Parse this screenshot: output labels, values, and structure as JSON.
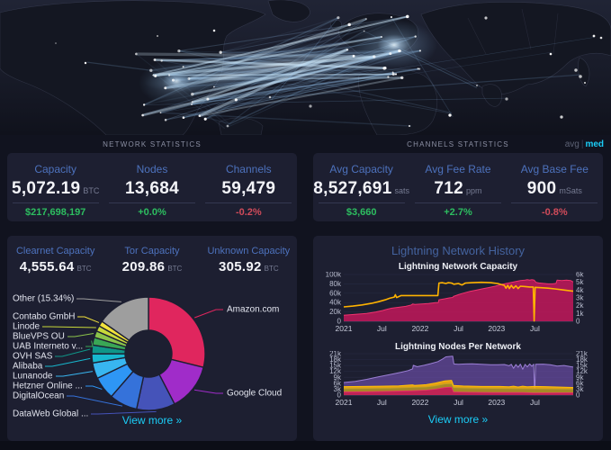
{
  "colors": {
    "accent_blue": "#4d72bd",
    "positive_green": "#2dbe60",
    "negative_red": "#d04b5a",
    "link_cyan": "#1bcdf7",
    "chart_yellow": "#ffb300",
    "chart_crimson": "#c2185b",
    "chart_purple": "#8e6bc9",
    "panel_bg": "#1d1f31",
    "page_bg": "#11131f"
  },
  "network_stats": {
    "header": "NETWORK STATISTICS",
    "items": [
      {
        "label": "Capacity",
        "value": "5,072.19",
        "unit": "BTC",
        "sub": "$217,698,197",
        "sub_color": "green"
      },
      {
        "label": "Nodes",
        "value": "13,684",
        "unit": "",
        "sub": "+0.0%",
        "sub_color": "green"
      },
      {
        "label": "Channels",
        "value": "59,479",
        "unit": "",
        "sub": "-0.2%",
        "sub_color": "red"
      }
    ]
  },
  "channel_stats": {
    "header": "CHANNELS STATISTICS",
    "toggle": {
      "avg": "avg",
      "separator": "|",
      "med": "med",
      "active": "med"
    },
    "items": [
      {
        "label": "Avg Capacity",
        "value": "8,527,691",
        "unit": "sats",
        "sub": "$3,660",
        "sub_color": "green"
      },
      {
        "label": "Avg Fee Rate",
        "value": "712",
        "unit": "ppm",
        "sub": "+2.7%",
        "sub_color": "green"
      },
      {
        "label": "Avg Base Fee",
        "value": "900",
        "unit": "mSats",
        "sub": "-0.8%",
        "sub_color": "red"
      }
    ]
  },
  "capacity_panel": {
    "stats": [
      {
        "label": "Clearnet Capacity",
        "value": "4,555.64",
        "unit": "BTC"
      },
      {
        "label": "Tor Capacity",
        "value": "209.86",
        "unit": "BTC"
      },
      {
        "label": "Unknown Capacity",
        "value": "305.92",
        "unit": "BTC"
      }
    ],
    "view_more": "View more »"
  },
  "history_panel": {
    "title": "Lightning Network History",
    "view_more": "View more »"
  },
  "chart_data": [
    {
      "type": "pie",
      "donut": true,
      "slices": [
        {
          "label": "Amazon.com",
          "value": 28.9,
          "color": "#e0265e"
        },
        {
          "label": "Google Cloud",
          "value": 13.5,
          "color": "#a02cc9"
        },
        {
          "label": "DataWeb Global ...",
          "value": 11.0,
          "color": "#4553b9"
        },
        {
          "label": "DigitalOcean",
          "value": 8.0,
          "color": "#3572da"
        },
        {
          "label": "Hetzner Online ...",
          "value": 6.5,
          "color": "#2e96f5"
        },
        {
          "label": "Lunanode",
          "value": 4.5,
          "color": "#38b6f0"
        },
        {
          "label": "Alibaba",
          "value": 2.6,
          "color": "#17b8cf"
        },
        {
          "label": "OVH SAS",
          "value": 2.5,
          "color": "#0f9688"
        },
        {
          "label": "UAB Interneto v...",
          "value": 2.2,
          "color": "#3aa655"
        },
        {
          "label": "BlueVPS OU",
          "value": 1.9,
          "color": "#8bc34a"
        },
        {
          "label": "Linode",
          "value": 1.6,
          "color": "#c9d93a"
        },
        {
          "label": "Contabo GmbH",
          "value": 1.5,
          "color": "#f2e23c"
        },
        {
          "label": "Other (15.34%)",
          "value": 15.34,
          "color": "#9e9e9e"
        }
      ]
    },
    {
      "type": "area",
      "title": "Lightning Network Capacity",
      "x_ticks": [
        {
          "label": "2021",
          "f": 0.0
        },
        {
          "label": "Jul",
          "f": 0.166
        },
        {
          "label": "2022",
          "f": 0.333
        },
        {
          "label": "Jul",
          "f": 0.5
        },
        {
          "label": "2023",
          "f": 0.666
        },
        {
          "label": "Jul",
          "f": 0.833
        }
      ],
      "left_axis": {
        "max": 100,
        "ticks": [
          "0",
          "20k",
          "40k",
          "60k",
          "80k",
          "100k"
        ]
      },
      "right_axis": {
        "max": 6,
        "ticks": [
          "0",
          "1k",
          "2k",
          "3k",
          "4k",
          "5k",
          "6k"
        ]
      },
      "series": [
        {
          "name": "crimson-area",
          "axis": "left",
          "fill": "rgba(194,24,91,0.85)",
          "stroke": "#f0326e",
          "width": 1,
          "points": [
            [
              0,
              13
            ],
            [
              0.05,
              15
            ],
            [
              0.1,
              17
            ],
            [
              0.14,
              20
            ],
            [
              0.17,
              23
            ],
            [
              0.19,
              26
            ],
            [
              0.21,
              28
            ],
            [
              0.24,
              30
            ],
            [
              0.27,
              32
            ],
            [
              0.295,
              35
            ],
            [
              0.3,
              37
            ],
            [
              0.31,
              36
            ],
            [
              0.34,
              37
            ],
            [
              0.37,
              38
            ],
            [
              0.4,
              40
            ],
            [
              0.412,
              40
            ],
            [
              0.415,
              46
            ],
            [
              0.44,
              48
            ],
            [
              0.46,
              50
            ],
            [
              0.475,
              51
            ],
            [
              0.478,
              53
            ],
            [
              0.5,
              57
            ],
            [
              0.52,
              60
            ],
            [
              0.55,
              64
            ],
            [
              0.58,
              67
            ],
            [
              0.6,
              69
            ],
            [
              0.63,
              72
            ],
            [
              0.66,
              75
            ],
            [
              0.69,
              79
            ],
            [
              0.72,
              82
            ],
            [
              0.75,
              85
            ],
            [
              0.77,
              87
            ],
            [
              0.79,
              88
            ],
            [
              0.8,
              89
            ],
            [
              0.81,
              88
            ],
            [
              0.82,
              89
            ],
            [
              0.83,
              88
            ],
            [
              0.838,
              83
            ],
            [
              0.85,
              82
            ],
            [
              0.87,
              81
            ],
            [
              0.89,
              80
            ],
            [
              0.91,
              80
            ],
            [
              0.925,
              81
            ],
            [
              0.93,
              88
            ],
            [
              0.95,
              87
            ],
            [
              0.97,
              88
            ],
            [
              0.99,
              87
            ],
            [
              1,
              84
            ]
          ]
        },
        {
          "name": "yellow-line",
          "axis": "right",
          "fill": null,
          "stroke": "#ffb300",
          "width": 1.6,
          "points": [
            [
              0,
              1.85
            ],
            [
              0.04,
              1.95
            ],
            [
              0.08,
              2.1
            ],
            [
              0.12,
              2.3
            ],
            [
              0.15,
              2.5
            ],
            [
              0.18,
              2.75
            ],
            [
              0.2,
              2.95
            ],
            [
              0.22,
              3.1
            ],
            [
              0.225,
              3.4
            ],
            [
              0.23,
              3.05
            ],
            [
              0.25,
              3.3
            ],
            [
              0.3,
              3.3
            ],
            [
              0.35,
              3.3
            ],
            [
              0.41,
              3.3
            ],
            [
              0.415,
              4.9
            ],
            [
              0.43,
              4.95
            ],
            [
              0.445,
              4.85
            ],
            [
              0.455,
              4.95
            ],
            [
              0.47,
              4.9
            ],
            [
              0.48,
              4.75
            ],
            [
              0.5,
              4.85
            ],
            [
              0.515,
              4.65
            ],
            [
              0.53,
              4.9
            ],
            [
              0.56,
              4.95
            ],
            [
              0.6,
              5
            ],
            [
              0.64,
              4.95
            ],
            [
              0.67,
              4.85
            ],
            [
              0.7,
              4.6
            ],
            [
              0.707,
              4.25
            ],
            [
              0.715,
              4.6
            ],
            [
              0.722,
              4.2
            ],
            [
              0.73,
              4.6
            ],
            [
              0.74,
              4.25
            ],
            [
              0.75,
              4.55
            ],
            [
              0.76,
              4.2
            ],
            [
              0.77,
              4.5
            ],
            [
              0.79,
              4.45
            ],
            [
              0.81,
              4.4
            ],
            [
              0.826,
              4.4
            ],
            [
              0.83,
              0.05
            ],
            [
              0.834,
              4.35
            ],
            [
              0.86,
              4.3
            ],
            [
              0.89,
              4.25
            ],
            [
              0.92,
              4.15
            ],
            [
              0.95,
              4.05
            ],
            [
              1,
              3.85
            ]
          ]
        }
      ]
    },
    {
      "type": "area",
      "title": "Lightning Nodes Per Network",
      "x_ticks": [
        {
          "label": "2021",
          "f": 0.0
        },
        {
          "label": "Jul",
          "f": 0.166
        },
        {
          "label": "2022",
          "f": 0.333
        },
        {
          "label": "Jul",
          "f": 0.5
        },
        {
          "label": "2023",
          "f": 0.666
        },
        {
          "label": "Jul",
          "f": 0.833
        }
      ],
      "left_axis": {
        "max": 21,
        "ticks": [
          "0",
          "3k",
          "6k",
          "9k",
          "12k",
          "15k",
          "18k",
          "21k"
        ]
      },
      "right_axis": {
        "max": 21,
        "ticks": [
          "0",
          "3k",
          "6k",
          "9k",
          "12k",
          "15k",
          "18k",
          "21k"
        ]
      },
      "series": [
        {
          "name": "purple",
          "axis": "left",
          "fill": "rgba(126,87,194,0.55)",
          "stroke": "#9b7fd4",
          "width": 1,
          "points": [
            [
              0,
              6.4
            ],
            [
              0.05,
              7
            ],
            [
              0.1,
              8
            ],
            [
              0.15,
              9.2
            ],
            [
              0.2,
              10.4
            ],
            [
              0.25,
              11.6
            ],
            [
              0.28,
              12.4
            ],
            [
              0.3,
              13.3
            ],
            [
              0.303,
              15.1
            ],
            [
              0.32,
              14.4
            ],
            [
              0.35,
              15.1
            ],
            [
              0.38,
              16
            ],
            [
              0.41,
              17
            ],
            [
              0.43,
              18.2
            ],
            [
              0.445,
              19.4
            ],
            [
              0.46,
              19.6
            ],
            [
              0.475,
              19.7
            ],
            [
              0.48,
              15.8
            ],
            [
              0.5,
              15.6
            ],
            [
              0.53,
              15.8
            ],
            [
              0.56,
              15.9
            ],
            [
              0.6,
              15.6
            ],
            [
              0.64,
              15.4
            ],
            [
              0.67,
              15.4
            ],
            [
              0.7,
              15.5
            ],
            [
              0.72,
              14.9
            ],
            [
              0.73,
              15.6
            ],
            [
              0.74,
              13.6
            ],
            [
              0.75,
              15.5
            ],
            [
              0.76,
              14.1
            ],
            [
              0.77,
              15.7
            ],
            [
              0.78,
              13.1
            ],
            [
              0.79,
              15.6
            ],
            [
              0.8,
              14.3
            ],
            [
              0.81,
              15.8
            ],
            [
              0.82,
              14.6
            ],
            [
              0.828,
              15.7
            ],
            [
              0.832,
              0.2
            ],
            [
              0.836,
              15.6
            ],
            [
              0.87,
              15.7
            ],
            [
              0.9,
              15.4
            ],
            [
              0.93,
              14.7
            ],
            [
              0.96,
              15
            ],
            [
              1,
              14.2
            ]
          ]
        },
        {
          "name": "yellow",
          "axis": "left",
          "fill": "rgba(255,179,0,0.85)",
          "stroke": "#ffc107",
          "width": 1,
          "points": [
            [
              0,
              4.3
            ],
            [
              0.08,
              4.4
            ],
            [
              0.16,
              4.5
            ],
            [
              0.24,
              4.7
            ],
            [
              0.3,
              5.2
            ],
            [
              0.31,
              4.9
            ],
            [
              0.36,
              5.3
            ],
            [
              0.4,
              6.1
            ],
            [
              0.44,
              7.2
            ],
            [
              0.47,
              7.5
            ],
            [
              0.478,
              4.9
            ],
            [
              0.52,
              4.6
            ],
            [
              0.6,
              4.4
            ],
            [
              0.68,
              4.4
            ],
            [
              0.72,
              4.2
            ],
            [
              0.74,
              4.5
            ],
            [
              0.76,
              4.1
            ],
            [
              0.78,
              4.5
            ],
            [
              0.8,
              4.2
            ],
            [
              0.83,
              4.4
            ],
            [
              0.88,
              4.3
            ],
            [
              0.93,
              4.1
            ],
            [
              1,
              3.9
            ]
          ]
        },
        {
          "name": "olive",
          "axis": "left",
          "fill": "rgba(160,135,40,0.9)",
          "stroke": "#bfa227",
          "width": 0.8,
          "points": [
            [
              0,
              3.3
            ],
            [
              0.1,
              3.4
            ],
            [
              0.2,
              3.5
            ],
            [
              0.3,
              3.9
            ],
            [
              0.36,
              4.1
            ],
            [
              0.4,
              4.7
            ],
            [
              0.44,
              5.6
            ],
            [
              0.47,
              5.8
            ],
            [
              0.478,
              3.8
            ],
            [
              0.55,
              3.5
            ],
            [
              0.65,
              3.4
            ],
            [
              0.75,
              3.3
            ],
            [
              0.85,
              3.2
            ],
            [
              1,
              3
            ]
          ]
        },
        {
          "name": "crimson",
          "axis": "left",
          "fill": "rgba(194,24,91,0.9)",
          "stroke": "#e8346b",
          "width": 0.8,
          "points": [
            [
              0,
              1.6
            ],
            [
              0.1,
              1.7
            ],
            [
              0.2,
              1.9
            ],
            [
              0.3,
              2.2
            ],
            [
              0.36,
              2.5
            ],
            [
              0.4,
              3
            ],
            [
              0.44,
              3.8
            ],
            [
              0.47,
              4
            ],
            [
              0.478,
              1.6
            ],
            [
              0.55,
              1.4
            ],
            [
              0.65,
              1.3
            ],
            [
              0.78,
              1.3
            ],
            [
              0.83,
              1.1
            ],
            [
              1,
              1.2
            ]
          ]
        }
      ]
    }
  ]
}
